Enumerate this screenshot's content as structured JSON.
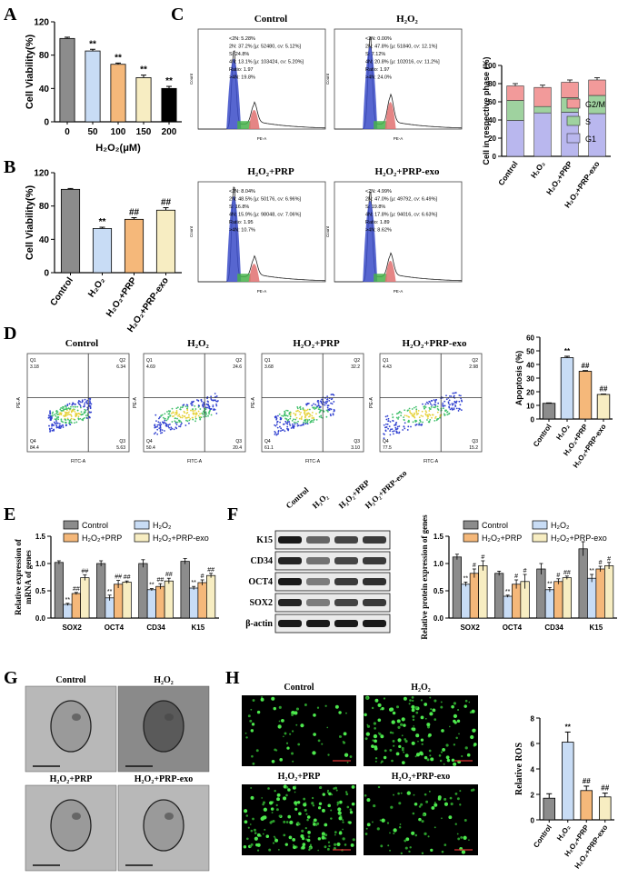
{
  "panels": {
    "A": "A",
    "B": "B",
    "C": "C",
    "D": "D",
    "E": "E",
    "F": "F",
    "G": "G",
    "H": "H"
  },
  "groups": [
    "Control",
    "H₂O₂",
    "H₂O₂+PRP",
    "H₂O₂+PRP-exo"
  ],
  "colors": {
    "gray": "#8c8c8c",
    "blue": "#c8dcf5",
    "orange": "#f5b87a",
    "cream": "#f7edc2",
    "g2m": "#f29a9a",
    "s": "#9fd29f",
    "g1": "#b9b7ee",
    "tick_bg": "#ffffff"
  },
  "chart_data": [
    {
      "id": "A",
      "type": "bar",
      "categories": [
        "0",
        "50",
        "100",
        "150",
        "200"
      ],
      "values": [
        100,
        85,
        69,
        53,
        40
      ],
      "errors": [
        1.5,
        2,
        1.5,
        3,
        2.5
      ],
      "sig": [
        "",
        "**",
        "**",
        "**",
        "**"
      ],
      "ylabel": "Cell Viability(%)",
      "xlabel": "H₂O₂(μM)",
      "yticks": [
        "0",
        "40",
        "80",
        "120"
      ],
      "ylim": [
        0,
        120
      ]
    },
    {
      "id": "B",
      "type": "bar",
      "categories": [
        "Control",
        "H₂O₂",
        "H₂O₂+PRP",
        "H₂O₂+PRP-exo"
      ],
      "values": [
        100,
        53,
        64,
        75
      ],
      "errors": [
        1,
        1.5,
        2,
        3
      ],
      "sig": [
        "",
        "**",
        "##",
        "##"
      ],
      "ylabel": "Cell Viability(%)",
      "yticks": [
        "0",
        "40",
        "80",
        "120"
      ],
      "ylim": [
        0,
        120
      ]
    },
    {
      "id": "C",
      "type": "bar",
      "categories": [
        "Control",
        "H₂O₂",
        "H₂O₂+PRP",
        "H₂O₂+PRP-exo"
      ],
      "series": [
        {
          "name": "G1",
          "values": [
            39.5,
            47.8,
            48.5,
            47.0
          ]
        },
        {
          "name": "S",
          "values": [
            22,
            7,
            16,
            20
          ]
        },
        {
          "name": "G2/M",
          "values": [
            16,
            21,
            17,
            17
          ]
        }
      ],
      "ylabel": "Cell in respective phase (%)",
      "yticks": [
        "0",
        "20",
        "40",
        "60",
        "80",
        "100"
      ],
      "ylim": [
        0,
        100
      ],
      "legend": "top-right"
    },
    {
      "id": "D",
      "type": "bar",
      "categories": [
        "Control",
        "H₂O₂",
        "H₂O₂+PRP",
        "H₂O₂+PRP-exo"
      ],
      "values": [
        11.5,
        45,
        35,
        18
      ],
      "errors": [
        0.3,
        1,
        0.5,
        0.3
      ],
      "sig": [
        "",
        "**",
        "##",
        "##"
      ],
      "ylabel": "Apoptosis (%)",
      "yticks": [
        "0",
        "10",
        "20",
        "30",
        "40",
        "50",
        "60"
      ],
      "ylim": [
        0,
        60
      ]
    },
    {
      "id": "E",
      "type": "bar",
      "categories": [
        "SOX2",
        "OCT4",
        "CD34",
        "K15"
      ],
      "series": [
        {
          "name": "Control",
          "values": [
            1.02,
            1.0,
            1.0,
            1.04
          ]
        },
        {
          "name": "H₂O₂",
          "values": [
            0.25,
            0.37,
            0.52,
            0.55
          ]
        },
        {
          "name": "H₂O₂+PRP",
          "values": [
            0.45,
            0.62,
            0.58,
            0.65
          ]
        },
        {
          "name": "H₂O₂+PRP-exo",
          "values": [
            0.74,
            0.66,
            0.68,
            0.78
          ]
        }
      ],
      "errors": [
        [
          0.03,
          0.05,
          0.07,
          0.05
        ],
        [
          0.02,
          0.05,
          0.02,
          0.03
        ],
        [
          0.02,
          0.07,
          0.05,
          0.05
        ],
        [
          0.05,
          0.02,
          0.05,
          0.04
        ]
      ],
      "sig": [
        [
          "",
          "**",
          "##",
          "##"
        ],
        [
          "",
          "**",
          "##",
          "##"
        ],
        [
          "",
          "**",
          "##",
          "##"
        ],
        [
          "",
          "**",
          "#",
          "##"
        ]
      ],
      "ylabel": "Relative expression of mRNA of genes",
      "yticks": [
        "0.0",
        "0.5",
        "1.0",
        "1.5"
      ],
      "ylim": [
        0,
        1.5
      ],
      "legend": "top"
    },
    {
      "id": "F",
      "type": "bar",
      "categories": [
        "SOX2",
        "OCT4",
        "CD34",
        "K15"
      ],
      "series": [
        {
          "name": "Control",
          "values": [
            1.12,
            0.82,
            0.9,
            1.27
          ]
        },
        {
          "name": "H₂O₂",
          "values": [
            0.62,
            0.4,
            0.52,
            0.73
          ]
        },
        {
          "name": "H₂O₂+PRP",
          "values": [
            0.82,
            0.62,
            0.67,
            0.9
          ]
        },
        {
          "name": "H₂O₂+PRP-exo",
          "values": [
            0.96,
            0.67,
            0.74,
            0.96
          ]
        }
      ],
      "errors": [
        [
          0.05,
          0.04,
          0.1,
          0.13
        ],
        [
          0.04,
          0.02,
          0.04,
          0.07
        ],
        [
          0.08,
          0.08,
          0.05,
          0.05
        ],
        [
          0.09,
          0.13,
          0.03,
          0.06
        ]
      ],
      "sig": [
        [
          "",
          "**",
          "#",
          "#"
        ],
        [
          "",
          "**",
          "#",
          "#"
        ],
        [
          "",
          "**",
          "#",
          "##"
        ],
        [
          "",
          "**",
          "#",
          "#"
        ]
      ],
      "ylabel": "Relative protein expression of genes",
      "yticks": [
        "0.0",
        "0.5",
        "1.0",
        "1.5"
      ],
      "ylim": [
        0,
        1.5
      ],
      "legend": "top"
    },
    {
      "id": "H",
      "type": "bar",
      "categories": [
        "Control",
        "H₂O₂",
        "H₂O₂+PRP",
        "H₂O₂+PRP-exo"
      ],
      "values": [
        1.7,
        6.1,
        2.3,
        1.8
      ],
      "errors": [
        0.35,
        0.8,
        0.35,
        0.3
      ],
      "sig": [
        "",
        "**",
        "##",
        "##"
      ],
      "ylabel": "Relative ROS",
      "yticks": [
        "0",
        "2",
        "4",
        "6",
        "8"
      ],
      "ylim": [
        0,
        8
      ]
    }
  ],
  "cell_cycle": {
    "titles": [
      "Control",
      "H₂O₂",
      "H₂O₂+PRP",
      "H₂O₂+PRP-exo"
    ],
    "stats": [
      [
        "<2N: 5.28%",
        "2N: 37.2%  [μ: 52480, cv: 5.12%]",
        "S: 24.8%",
        "4N: 13.1%  [μ: 103424, cv: 5.20%]",
        "Ratio: 1.97",
        ">4N: 19.8%"
      ],
      [
        "<2N: 0.00%",
        "2N: 47.8%  [μ: 51840, cv: 12.1%]",
        "S: 7.12%",
        "4N: 20.8%  [μ: 102016, cv: 11.2%]",
        "Ratio: 1.97",
        ">4N: 24.0%"
      ],
      [
        "<2N: 8.04%",
        "2N: 48.5%  [μ: 50176, cv: 6.96%]",
        "S: 16.8%",
        "4N: 15.9%  [μ: 98048, cv: 7.06%]",
        "Ratio: 1.95",
        ">4N: 10.7%"
      ],
      [
        "<2N: 4.99%",
        "2N: 47.0%  [μ: 49792, cv: 6.49%]",
        "S: 19.8%",
        "4N: 17.8%  [μ: 94016, cv: 6.63%]",
        "Ratio: 1.89",
        ">4N: 8.62%"
      ]
    ]
  },
  "flow": {
    "titles": [
      "Control",
      "H₂O₂",
      "H₂O₂+PRP",
      "H₂O₂+PRP-exo"
    ],
    "quadrants": [
      [
        "Q1",
        "3.18",
        "Q2",
        "6.34",
        "Q4",
        "84.4",
        "Q3",
        "5.63"
      ],
      [
        "Q1",
        "4.69",
        "Q2",
        "24.6",
        "Q4",
        "50.4",
        "Q3",
        "20.4"
      ],
      [
        "Q1",
        "3.68",
        "Q2",
        "32.2",
        "Q4",
        "61.1",
        "Q3",
        "3.10"
      ],
      [
        "Q1",
        "4.43",
        "Q2",
        "2.98",
        "Q4",
        "77.5",
        "Q3",
        "15.2"
      ]
    ],
    "xaxis": "FITC-A",
    "yaxis": "PE-A"
  },
  "western": {
    "labels": [
      "K15",
      "CD34",
      "OCT4",
      "SOX2",
      "β-actin"
    ],
    "columns": [
      "Control",
      "H₂O₂",
      "H₂O₂+PRP",
      "H₂O₂+PRP-exo"
    ]
  },
  "tem": {
    "titles": [
      "Control",
      "H₂O₂",
      "H₂O₂+PRP",
      "H₂O₂+PRP-exo"
    ]
  },
  "ros": {
    "titles": [
      "Control",
      "H₂O₂",
      "H₂O₂+PRP",
      "H₂O₂+PRP-exo"
    ]
  }
}
